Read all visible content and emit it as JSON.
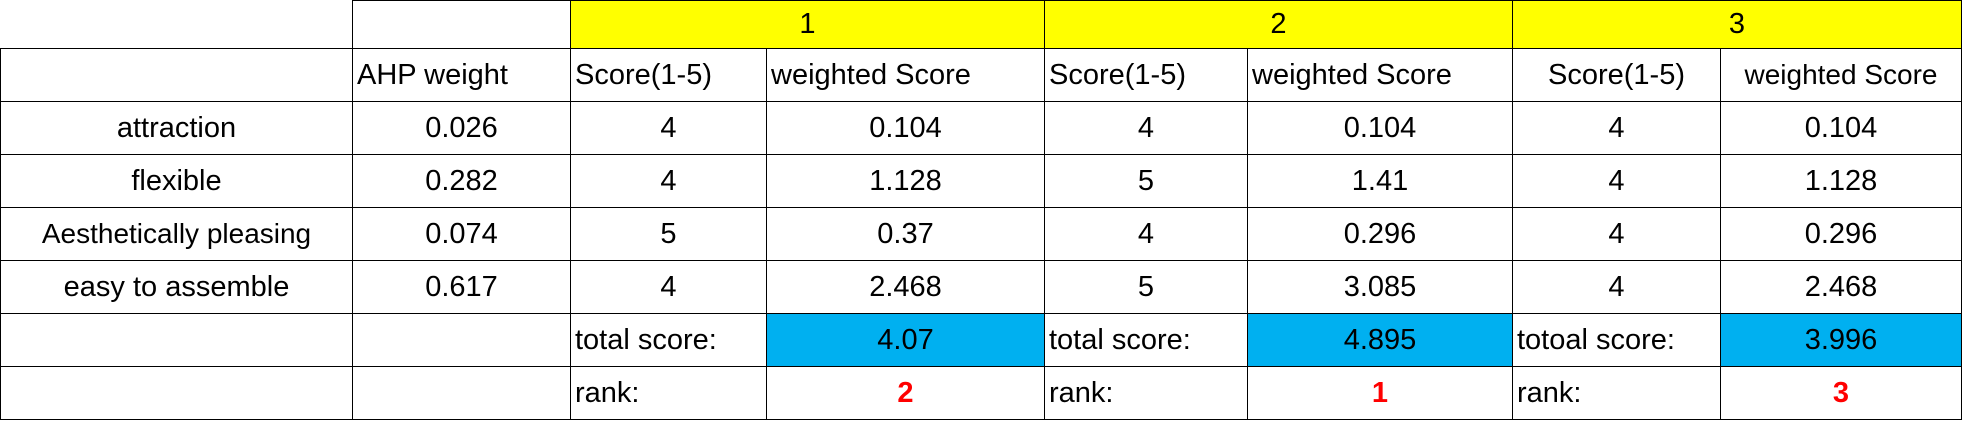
{
  "colors": {
    "header_fill": "#ffff00",
    "total_fill": "#00b0f0",
    "rank_text": "#ff0000"
  },
  "groups": [
    "1",
    "2",
    "3"
  ],
  "columns": {
    "ahp_weight": "AHP weight",
    "score": "Score(1-5)",
    "weighted": "weighted Score"
  },
  "rows": [
    {
      "criterion": "attraction",
      "weight": "0.026",
      "s1": "4",
      "w1": "0.104",
      "s2": "4",
      "w2": "0.104",
      "s3": "4",
      "w3": "0.104"
    },
    {
      "criterion": "flexible",
      "weight": "0.282",
      "s1": "4",
      "w1": "1.128",
      "s2": "5",
      "w2": "1.41",
      "s3": "4",
      "w3": "1.128"
    },
    {
      "criterion": "Aesthetically pleasing",
      "weight": "0.074",
      "s1": "5",
      "w1": "0.37",
      "s2": "4",
      "w2": "0.296",
      "s3": "4",
      "w3": "0.296"
    },
    {
      "criterion": "easy to assemble",
      "weight": "0.617",
      "s1": "4",
      "w1": "2.468",
      "s2": "5",
      "w2": "3.085",
      "s3": "4",
      "w3": "2.468"
    }
  ],
  "totals": {
    "label1": "total score:",
    "label2": "total score:",
    "label3": "totoal score:",
    "value1": "4.07",
    "value2": "4.895",
    "value3": "3.996"
  },
  "ranks": {
    "label1": "rank:",
    "label2": "rank:",
    "label3": "rank:",
    "value1": "2",
    "value2": "1",
    "value3": "3"
  }
}
